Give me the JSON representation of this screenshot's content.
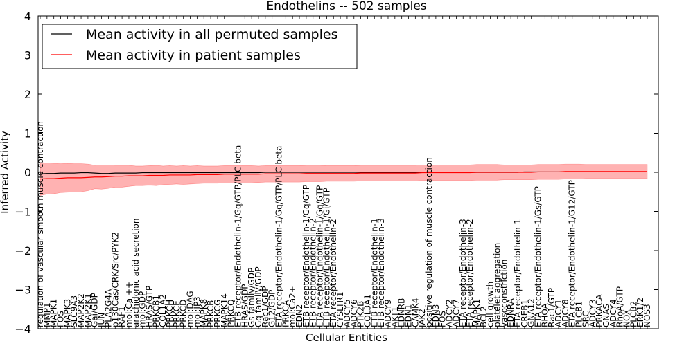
{
  "chart_data": {
    "type": "line",
    "title": "Endothelins -- 502 samples",
    "xlabel": "Cellular Entities",
    "ylabel": "Inferred Activity",
    "ylim": [
      -4,
      4
    ],
    "yticks": [
      -4,
      -3,
      -2,
      -1,
      0,
      1,
      2,
      3,
      4
    ],
    "ytick_labels": [
      "−4",
      "−3",
      "−2",
      "−1",
      "0",
      "1",
      "2",
      "3",
      "4"
    ],
    "grid": false,
    "legend_position": "top-left",
    "categories": [
      "regulation of vascular smooth muscle contraction",
      "MMP1",
      "MAPK1",
      "FOS",
      "MAPK3",
      "SLC9A3",
      "MAP2K2",
      "MAP2K1",
      "Gai/GDP",
      "JUN",
      "PLA2G4A",
      "p130Cas/CRK/Src/PYK2",
      "RAF1",
      "mol:Ca ++",
      "arachidonic acid secretion",
      "mol:GDP",
      "HRAS/GTP",
      "PRKCB1",
      "COL1A2",
      "PRKCH",
      "PRKCE",
      "PRKCD",
      "mol:DAG",
      "mol:IP3",
      "MAPK8",
      "PRKCB",
      "PRKCG",
      "MAPK14",
      "PRKCQ",
      "ETB receptor/Endothelin-1/Gq/GTP/PLC beta",
      "HRAS/GDP",
      "Gs family/GDP",
      "Gq family/GDP",
      "Rac1/GDP",
      "G12/GDP",
      "ETA receptor/Endothelin-1/Gq/GTP/PLC beta",
      "PRKCA",
      "mol:Ca2+",
      "EDN2",
      "ETB receptor/Endothelin-1/Gq/GTP",
      "ETB receptor/Endothelin-2",
      "ETA receptor/Endothelin-1/Gq/GTP",
      "ETB receptor/Endothelin-1/Gi/GTP",
      "ETA receptor/Endothelin-2",
      "CYSLTR1",
      "ADCY5",
      "ADCY6",
      "PTK2B",
      "COL3A1",
      "ETB receptor/Endothelin-1",
      "ETB receptor/Endothelin-3",
      "ADCY9",
      "AKT1",
      "EDNRB",
      "EDN1",
      "CAMK4",
      "JAK2",
      "positive regulation of muscle contraction",
      "EDN3",
      "FOS",
      "ADCY2",
      "ADCY7",
      "ETA receptor/Endothelin-3",
      "ETA receptor/Endothelin-2",
      "MAPK1",
      "BCL2",
      "cell growth",
      "platelet aggregation",
      "vasoconstriction",
      "EDNRA",
      "ETA receptor/Endothelin-1",
      "CREB1",
      "GNA12",
      "ETA receptor/Endothelin-1/Gs/GTP",
      "RHOA",
      "Rac1/GTP",
      "ADCY1",
      "ADCY8",
      "ETA receptor/Endothelin-1/G12/GTP",
      "PLCB1",
      "SRC",
      "ADCY3",
      "PRKACA",
      "GNAS",
      "ADCY4",
      "RhoA/GTP",
      "NOX",
      "PLCB2",
      "ERK1/2",
      "NOS3"
    ],
    "series": [
      {
        "name": "Mean activity in all permuted samples",
        "color": "#000000",
        "values": [
          -0.04,
          -0.03,
          -0.03,
          -0.02,
          -0.02,
          -0.02,
          -0.01,
          -0.01,
          -0.02,
          -0.03,
          -0.03,
          -0.02,
          -0.02,
          -0.02,
          -0.02,
          -0.01,
          -0.01,
          -0.01,
          -0.01,
          -0.01,
          -0.01,
          -0.01,
          -0.01,
          -0.01,
          -0.01,
          -0.01,
          -0.01,
          -0.01,
          -0.01,
          -0.01,
          -0.01,
          -0.01,
          -0.01,
          0.0,
          0.0,
          0.0,
          0.0,
          0.0,
          0.0,
          0.0,
          0.0,
          0.0,
          0.0,
          0.0,
          0.0,
          0.0,
          0.0,
          0.0,
          0.0,
          0.0,
          0.0,
          0.0,
          0.0,
          0.0,
          0.0,
          0.0,
          0.0,
          0.0,
          0.0,
          0.0,
          0.0,
          0.0,
          0.0,
          0.0,
          0.0,
          0.0,
          0.0,
          0.0,
          0.0,
          0.0,
          0.0,
          0.01,
          0.01,
          0.01,
          0.01,
          0.01,
          0.01,
          0.01,
          0.01,
          0.01,
          0.01,
          0.01,
          0.01,
          0.01,
          0.01,
          0.01,
          0.01,
          0.01,
          0.01,
          0.01
        ]
      },
      {
        "name": "Mean activity in patient samples",
        "color": "#ff0000",
        "values": [
          -0.17,
          -0.16,
          -0.16,
          -0.15,
          -0.14,
          -0.14,
          -0.14,
          -0.13,
          -0.12,
          -0.12,
          -0.11,
          -0.1,
          -0.1,
          -0.09,
          -0.09,
          -0.09,
          -0.08,
          -0.08,
          -0.08,
          -0.07,
          -0.07,
          -0.07,
          -0.07,
          -0.06,
          -0.06,
          -0.06,
          -0.06,
          -0.05,
          -0.05,
          -0.05,
          -0.05,
          -0.05,
          -0.05,
          -0.04,
          -0.04,
          -0.04,
          -0.04,
          -0.04,
          -0.04,
          -0.03,
          -0.03,
          -0.03,
          -0.03,
          -0.03,
          -0.03,
          -0.03,
          -0.03,
          -0.02,
          -0.02,
          -0.02,
          -0.02,
          -0.02,
          -0.02,
          -0.02,
          -0.02,
          -0.02,
          -0.01,
          -0.01,
          -0.01,
          -0.01,
          -0.01,
          -0.01,
          -0.01,
          -0.01,
          0.0,
          0.0,
          0.0,
          0.0,
          0.0,
          0.0,
          0.0,
          0.0,
          0.0,
          0.01,
          0.01,
          0.01,
          0.01,
          0.02,
          0.02,
          0.02,
          0.02,
          0.02,
          0.02,
          0.02,
          0.02,
          0.02,
          0.02,
          0.02,
          0.02,
          0.02
        ],
        "std": [
          0.42,
          0.4,
          0.39,
          0.37,
          0.37,
          0.36,
          0.36,
          0.34,
          0.3,
          0.31,
          0.3,
          0.28,
          0.28,
          0.27,
          0.25,
          0.25,
          0.25,
          0.26,
          0.24,
          0.24,
          0.23,
          0.24,
          0.23,
          0.23,
          0.22,
          0.22,
          0.22,
          0.22,
          0.22,
          0.22,
          0.22,
          0.22,
          0.21,
          0.21,
          0.21,
          0.21,
          0.21,
          0.21,
          0.21,
          0.21,
          0.21,
          0.21,
          0.2,
          0.2,
          0.2,
          0.2,
          0.2,
          0.2,
          0.2,
          0.2,
          0.2,
          0.2,
          0.2,
          0.2,
          0.2,
          0.2,
          0.2,
          0.2,
          0.2,
          0.2,
          0.2,
          0.2,
          0.2,
          0.2,
          0.2,
          0.2,
          0.2,
          0.2,
          0.19,
          0.19,
          0.19,
          0.19,
          0.19,
          0.19,
          0.19,
          0.19,
          0.19,
          0.19,
          0.19,
          0.19,
          0.18,
          0.18,
          0.18,
          0.18,
          0.18,
          0.18,
          0.18,
          0.18,
          0.18,
          0.18
        ],
        "band_color": "#ff0000"
      }
    ]
  }
}
